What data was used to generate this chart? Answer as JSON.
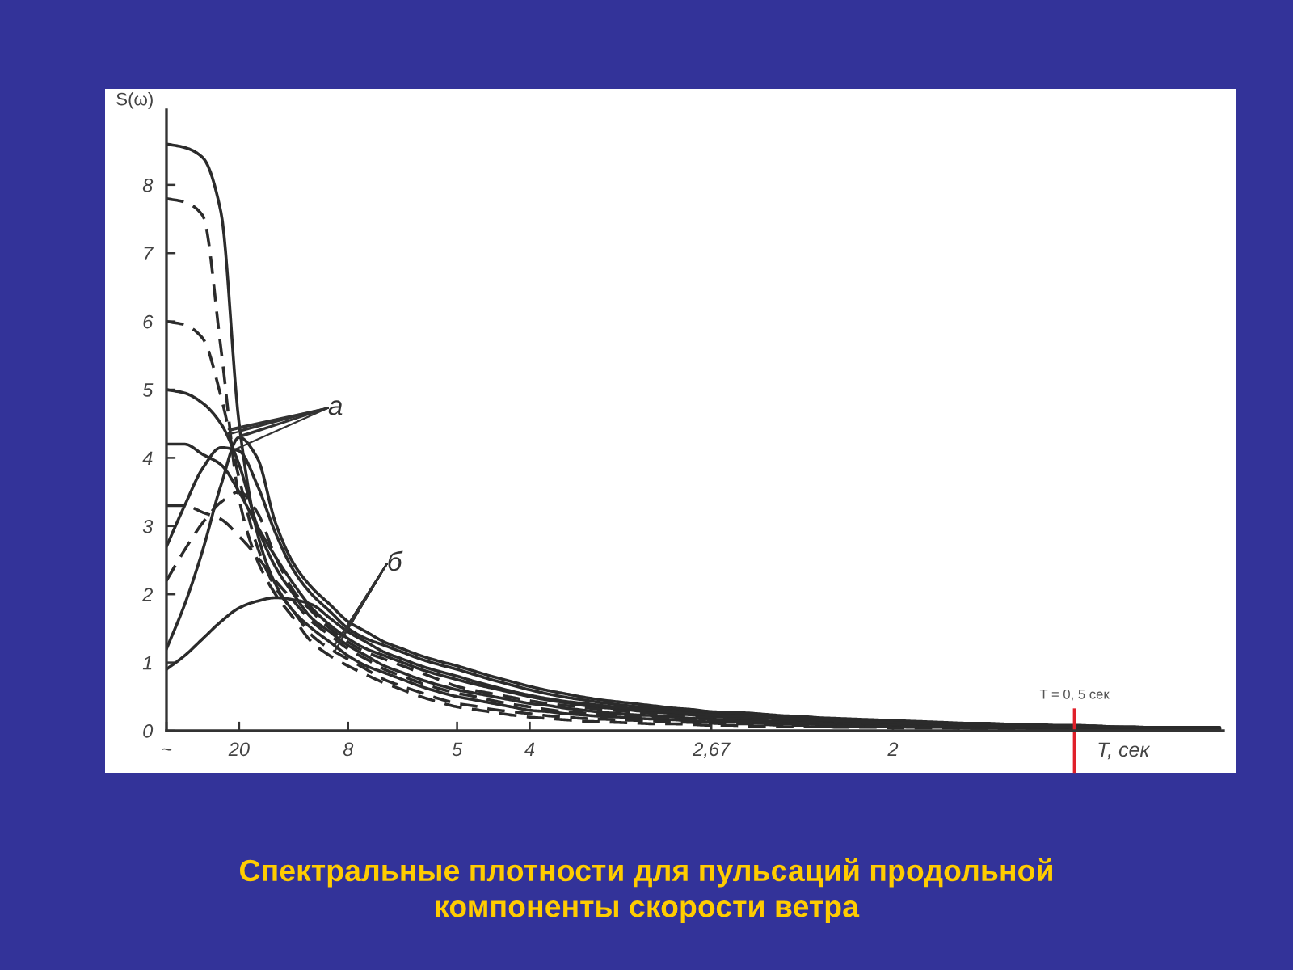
{
  "chart_data": {
    "type": "line",
    "title": "Спектральные плотности для пульсаций продольной\nкомпоненты скорости ветра",
    "xlabel": "T, сек",
    "ylabel": "S(ω)",
    "categories": [
      "~",
      null,
      null,
      null,
      "20",
      null,
      null,
      null,
      null,
      null,
      "8",
      null,
      null,
      null,
      null,
      null,
      "5",
      null,
      null,
      null,
      "4",
      null,
      null,
      null,
      null,
      null,
      null,
      null,
      null,
      null,
      "2,67",
      null,
      null,
      null,
      null,
      null,
      null,
      null,
      null,
      null,
      "2",
      null,
      null,
      null,
      null,
      null,
      null,
      null,
      null,
      null,
      null,
      null,
      null,
      null,
      null,
      null,
      null,
      null,
      null
    ],
    "ylim": [
      0,
      9.1
    ],
    "yticks": [
      0,
      1,
      2,
      3,
      4,
      5,
      6,
      7,
      8
    ],
    "line_style": "solid",
    "series": [
      {
        "color": "#2b2b2b",
        "values": [
          8.6,
          8.55,
          8.4,
          7.6,
          4.5,
          2.9,
          2.15,
          1.75,
          1.5,
          1.3,
          1.1,
          0.95,
          0.85,
          0.75,
          0.65,
          0.57,
          0.5,
          0.45,
          0.4,
          0.35,
          0.3,
          0.28,
          0.25,
          0.23,
          0.21,
          0.2,
          0.18,
          0.17,
          0.16,
          0.14,
          0.13,
          0.13,
          0.12,
          0.11,
          0.1,
          0.1,
          0.09,
          0.08,
          0.08,
          0.07,
          0.07,
          0.07,
          0.06,
          0.06,
          0.05,
          0.05,
          0.05,
          0.04,
          0.04,
          0.04,
          0.04,
          0.03,
          0.03,
          0.03,
          0.03,
          0.02,
          0.02,
          0.02,
          0.02
        ]
      },
      {
        "color": "#2b2b2b",
        "line_style": "dashed",
        "values": [
          7.8,
          7.75,
          7.55,
          5.6,
          3.4,
          2.5,
          2.0,
          1.65,
          1.3,
          1.1,
          0.95,
          0.82,
          0.7,
          0.6,
          0.5,
          0.42,
          0.35,
          0.31,
          0.27,
          0.23,
          0.2,
          0.18,
          0.16,
          0.14,
          0.13,
          0.12,
          0.11,
          0.1,
          0.1,
          0.09,
          0.08,
          0.08,
          0.07,
          0.07,
          0.06,
          0.06,
          0.06,
          0.05,
          0.05,
          0.05,
          0.04,
          0.04,
          0.04,
          0.04,
          0.03,
          0.03,
          0.03,
          0.03,
          0.02,
          0.02,
          0.02,
          0.02,
          0.02,
          0.02,
          0.02,
          0.01,
          0.01,
          0.01,
          0.01
        ]
      },
      {
        "color": "#2b2b2b",
        "line_style": "dashed",
        "values": [
          6.0,
          5.95,
          5.75,
          4.9,
          3.7,
          2.7,
          2.1,
          1.75,
          1.4,
          1.2,
          1.05,
          0.9,
          0.75,
          0.65,
          0.56,
          0.47,
          0.4,
          0.36,
          0.31,
          0.28,
          0.25,
          0.22,
          0.2,
          0.18,
          0.17,
          0.16,
          0.15,
          0.14,
          0.13,
          0.12,
          0.11,
          0.1,
          0.1,
          0.09,
          0.08,
          0.08,
          0.07,
          0.07,
          0.06,
          0.06,
          0.06,
          0.05,
          0.05,
          0.05,
          0.04,
          0.04,
          0.04,
          0.04,
          0.03,
          0.03,
          0.03,
          0.03,
          0.02,
          0.02,
          0.02,
          0.02,
          0.02,
          0.02,
          0.02
        ]
      },
      {
        "color": "#2b2b2b",
        "values": [
          5.0,
          4.95,
          4.8,
          4.5,
          3.9,
          3.0,
          2.4,
          2.0,
          1.65,
          1.45,
          1.25,
          1.1,
          0.95,
          0.85,
          0.75,
          0.67,
          0.6,
          0.55,
          0.5,
          0.45,
          0.4,
          0.37,
          0.33,
          0.3,
          0.27,
          0.25,
          0.23,
          0.22,
          0.2,
          0.18,
          0.17,
          0.16,
          0.15,
          0.14,
          0.13,
          0.12,
          0.12,
          0.11,
          0.1,
          0.09,
          0.09,
          0.08,
          0.08,
          0.07,
          0.07,
          0.06,
          0.06,
          0.06,
          0.05,
          0.05,
          0.05,
          0.04,
          0.04,
          0.04,
          0.03,
          0.03,
          0.03,
          0.03,
          0.03
        ]
      },
      {
        "color": "#2b2b2b",
        "values": [
          4.2,
          4.2,
          4.05,
          3.9,
          3.5,
          3.0,
          2.55,
          2.15,
          1.8,
          1.55,
          1.35,
          1.2,
          1.1,
          1.0,
          0.9,
          0.82,
          0.75,
          0.68,
          0.62,
          0.56,
          0.5,
          0.45,
          0.41,
          0.37,
          0.34,
          0.32,
          0.29,
          0.27,
          0.25,
          0.23,
          0.21,
          0.2,
          0.19,
          0.18,
          0.17,
          0.16,
          0.15,
          0.14,
          0.13,
          0.12,
          0.11,
          0.11,
          0.1,
          0.09,
          0.09,
          0.08,
          0.07,
          0.07,
          0.06,
          0.06,
          0.06,
          0.05,
          0.05,
          0.04,
          0.04,
          0.04,
          0.03,
          0.03,
          0.03
        ]
      },
      {
        "color": "#2b2b2b",
        "line_style": "dashed",
        "values": [
          3.3,
          3.3,
          3.2,
          3.1,
          2.85,
          2.55,
          2.2,
          1.9,
          1.6,
          1.4,
          1.2,
          1.05,
          0.9,
          0.8,
          0.7,
          0.62,
          0.55,
          0.5,
          0.44,
          0.39,
          0.35,
          0.31,
          0.28,
          0.26,
          0.24,
          0.22,
          0.21,
          0.19,
          0.18,
          0.16,
          0.15,
          0.14,
          0.14,
          0.13,
          0.12,
          0.11,
          0.1,
          0.1,
          0.09,
          0.08,
          0.08,
          0.07,
          0.07,
          0.06,
          0.06,
          0.06,
          0.05,
          0.05,
          0.05,
          0.04,
          0.04,
          0.04,
          0.03,
          0.03,
          0.03,
          0.03,
          0.02,
          0.02,
          0.02
        ]
      },
      {
        "color": "#2b2b2b",
        "values": [
          2.7,
          3.3,
          3.85,
          4.15,
          4.1,
          3.6,
          2.9,
          2.35,
          2.0,
          1.75,
          1.5,
          1.35,
          1.25,
          1.15,
          1.05,
          0.97,
          0.9,
          0.82,
          0.74,
          0.67,
          0.6,
          0.54,
          0.49,
          0.45,
          0.41,
          0.38,
          0.35,
          0.33,
          0.3,
          0.28,
          0.26,
          0.25,
          0.23,
          0.22,
          0.2,
          0.19,
          0.18,
          0.16,
          0.15,
          0.14,
          0.14,
          0.13,
          0.12,
          0.11,
          0.1,
          0.1,
          0.09,
          0.09,
          0.08,
          0.07,
          0.07,
          0.07,
          0.06,
          0.05,
          0.05,
          0.05,
          0.04,
          0.04,
          0.04
        ]
      },
      {
        "color": "#2b2b2b",
        "line_style": "dashed",
        "values": [
          2.2,
          2.65,
          3.05,
          3.35,
          3.5,
          3.2,
          2.55,
          2.05,
          1.75,
          1.5,
          1.3,
          1.15,
          1.05,
          0.95,
          0.85,
          0.75,
          0.65,
          0.59,
          0.54,
          0.49,
          0.44,
          0.4,
          0.37,
          0.34,
          0.31,
          0.29,
          0.27,
          0.25,
          0.23,
          0.21,
          0.2,
          0.19,
          0.18,
          0.16,
          0.15,
          0.14,
          0.13,
          0.12,
          0.11,
          0.11,
          0.1,
          0.1,
          0.09,
          0.08,
          0.08,
          0.07,
          0.07,
          0.07,
          0.06,
          0.06,
          0.05,
          0.05,
          0.04,
          0.04,
          0.04,
          0.03,
          0.03,
          0.03,
          0.03
        ]
      },
      {
        "color": "#2b2b2b",
        "values": [
          1.2,
          1.85,
          2.65,
          3.6,
          4.3,
          4.0,
          3.05,
          2.45,
          2.1,
          1.85,
          1.6,
          1.45,
          1.3,
          1.2,
          1.1,
          1.02,
          0.95,
          0.87,
          0.79,
          0.72,
          0.65,
          0.59,
          0.54,
          0.49,
          0.45,
          0.42,
          0.39,
          0.36,
          0.33,
          0.31,
          0.28,
          0.27,
          0.26,
          0.24,
          0.22,
          0.21,
          0.19,
          0.18,
          0.17,
          0.16,
          0.15,
          0.14,
          0.13,
          0.12,
          0.11,
          0.11,
          0.1,
          0.09,
          0.09,
          0.08,
          0.08,
          0.07,
          0.06,
          0.06,
          0.05,
          0.05,
          0.05,
          0.05,
          0.05
        ]
      },
      {
        "color": "#2b2b2b",
        "values": [
          0.9,
          1.1,
          1.35,
          1.6,
          1.8,
          1.9,
          1.95,
          1.92,
          1.85,
          1.65,
          1.45,
          1.3,
          1.15,
          1.05,
          0.95,
          0.87,
          0.8,
          0.72,
          0.65,
          0.58,
          0.52,
          0.47,
          0.43,
          0.4,
          0.37,
          0.34,
          0.32,
          0.3,
          0.27,
          0.25,
          0.23,
          0.22,
          0.21,
          0.2,
          0.18,
          0.17,
          0.16,
          0.15,
          0.14,
          0.13,
          0.12,
          0.11,
          0.11,
          0.1,
          0.09,
          0.09,
          0.08,
          0.08,
          0.07,
          0.07,
          0.06,
          0.06,
          0.05,
          0.05,
          0.04,
          0.04,
          0.04,
          0.04,
          0.04
        ]
      }
    ],
    "annotations": [
      {
        "text": "а",
        "x": "20",
        "y": 4.4
      },
      {
        "text": "б",
        "x": "8",
        "y": 1.5
      },
      "T = 0, 5 сек"
    ]
  }
}
